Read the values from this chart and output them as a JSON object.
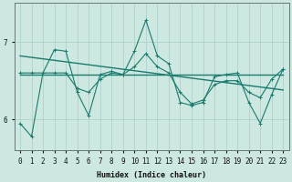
{
  "xlabel": "Humidex (Indice chaleur)",
  "background_color": "#cce8e0",
  "line_color": "#1a7a6e",
  "grid_color": "#aacec8",
  "x_values": [
    0,
    1,
    2,
    3,
    4,
    5,
    6,
    7,
    8,
    9,
    10,
    11,
    12,
    13,
    14,
    15,
    16,
    17,
    18,
    19,
    20,
    21,
    22,
    23
  ],
  "series1": [
    5.95,
    5.78,
    6.6,
    6.9,
    6.88,
    6.35,
    6.05,
    6.58,
    6.62,
    6.58,
    6.88,
    7.28,
    6.82,
    6.72,
    6.22,
    6.18,
    6.22,
    6.55,
    6.58,
    6.6,
    6.22,
    5.95,
    6.32,
    6.65
  ],
  "series2": [
    6.6,
    6.6,
    6.6,
    6.6,
    6.6,
    6.4,
    6.35,
    6.52,
    6.6,
    6.58,
    6.68,
    6.85,
    6.68,
    6.6,
    6.35,
    6.2,
    6.25,
    6.45,
    6.5,
    6.5,
    6.35,
    6.28,
    6.52,
    6.65
  ],
  "trend1_x": [
    0,
    23
  ],
  "trend1_y": [
    6.58,
    6.58
  ],
  "trend2_x": [
    0,
    23
  ],
  "trend2_y": [
    6.82,
    6.38
  ],
  "ylim": [
    5.6,
    7.5
  ],
  "yticks": [
    6,
    7
  ],
  "xticks": [
    0,
    1,
    2,
    3,
    4,
    5,
    6,
    7,
    8,
    9,
    10,
    11,
    12,
    13,
    14,
    15,
    16,
    17,
    18,
    19,
    20,
    21,
    22,
    23
  ],
  "xlabel_fontsize": 6,
  "tick_fontsize": 5.5,
  "ytick_fontsize": 7
}
